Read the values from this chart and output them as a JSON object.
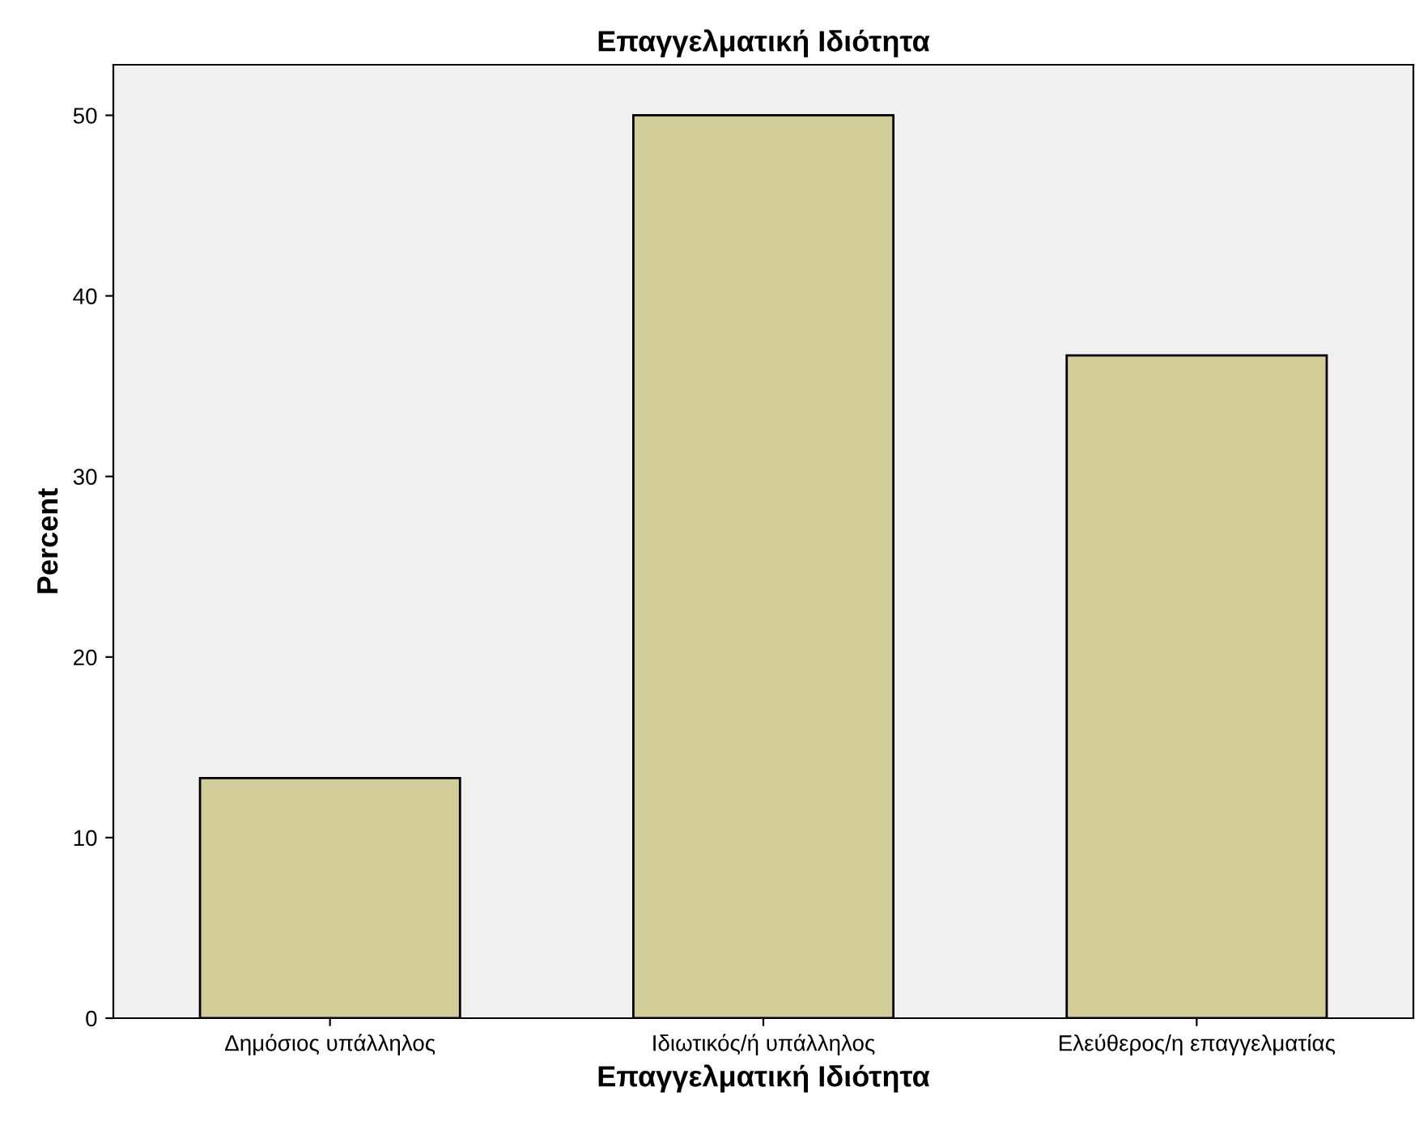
{
  "chart_data": {
    "type": "bar",
    "title": "Επαγγελματική Ιδιότητα",
    "xlabel": "Επαγγελματική Ιδιότητα",
    "ylabel": "Percent",
    "categories": [
      "Δημόσιος υπάλληλος",
      "Ιδιωτικός/ή υπάλληλος",
      "Ελεύθερος/η επαγγελματίας"
    ],
    "values": [
      13.3,
      50.0,
      36.7
    ],
    "color": "#d3ce99",
    "ylim": [
      0,
      52.8
    ],
    "yticks": [
      0,
      10,
      20,
      30,
      40,
      50
    ],
    "grid": false,
    "legend": false
  }
}
